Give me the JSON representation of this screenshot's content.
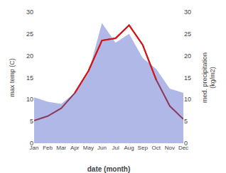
{
  "chart_data": {
    "type": "line",
    "categories": [
      "Jan",
      "Feb",
      "Mar",
      "Apr",
      "May",
      "Jun",
      "Jul",
      "Aug",
      "Sep",
      "Oct",
      "Nov",
      "Dec"
    ],
    "series": [
      {
        "type": "area",
        "color": "#b0b8e8",
        "values": [
          10.5,
          9.5,
          9.0,
          11.5,
          16.0,
          27.5,
          23.0,
          25.0,
          19.5,
          17.0,
          12.5,
          11.5
        ]
      },
      {
        "type": "line",
        "color": "#8b3a5a",
        "values": [
          5.2,
          6.2,
          8.0,
          11.5,
          16.5,
          23.5,
          24.0,
          27.0,
          22.5,
          14.5,
          8.5,
          5.5
        ]
      },
      {
        "type": "line",
        "color": "#dd1111",
        "values": [
          null,
          null,
          null,
          11.5,
          16.5,
          23.5,
          24.0,
          27.0,
          22.5,
          14.5,
          null,
          null
        ]
      }
    ],
    "xlabel": "date (month)",
    "ylabel": "max temp (C)",
    "y2label": "med. precipitation\n(kg/m2)",
    "ylim": [
      0,
      30
    ],
    "yticks": [
      0,
      5,
      10,
      15,
      20,
      25,
      30
    ],
    "y2lim": [
      0,
      30
    ],
    "y2ticks": [
      0,
      5,
      10,
      15,
      20,
      25,
      30
    ],
    "grid": false
  }
}
